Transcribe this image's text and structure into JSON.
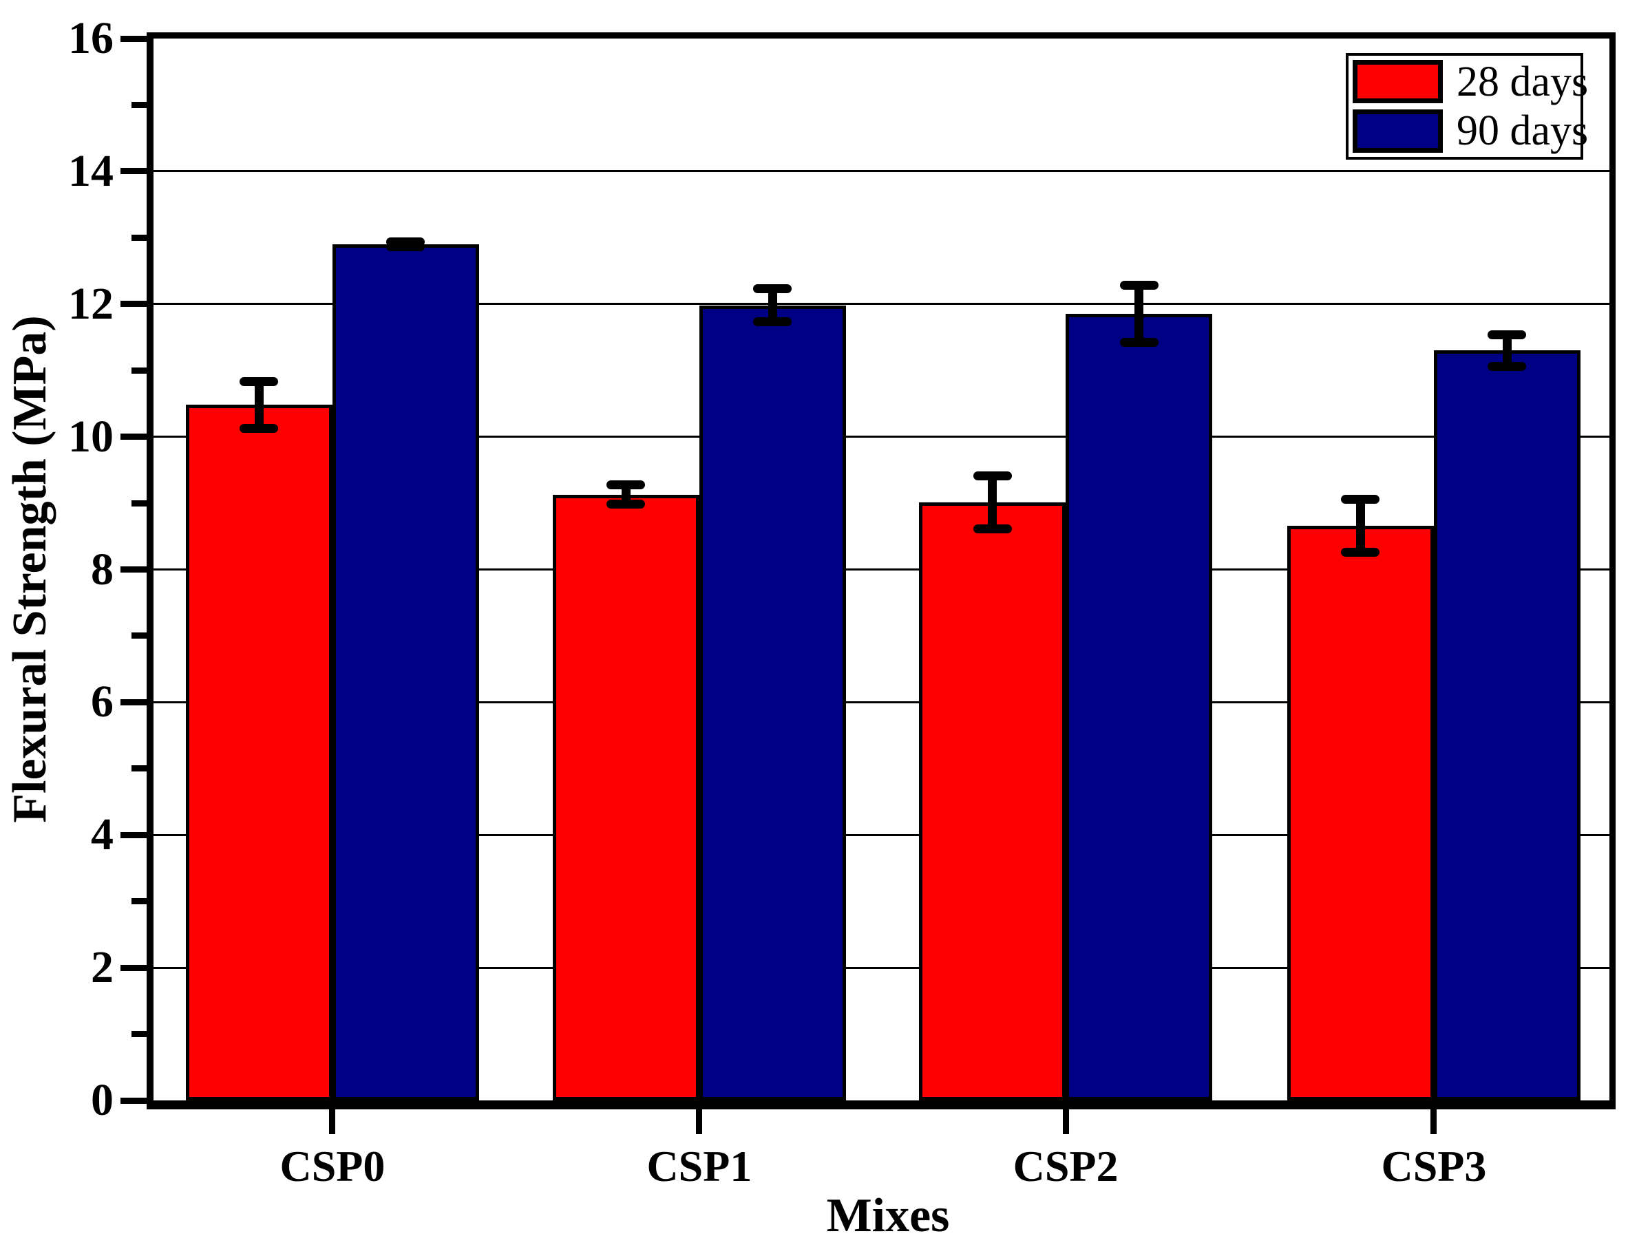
{
  "chart_data": {
    "type": "bar",
    "xlabel": "Mixes",
    "ylabel": "Flexural Strength (MPa)",
    "categories": [
      "CSP0",
      "CSP1",
      "CSP2",
      "CSP3"
    ],
    "series": [
      {
        "name": "28 days",
        "color": "#ff0000",
        "values": [
          10.48,
          9.13,
          9.01,
          8.66
        ],
        "errors": [
          0.35,
          0.15,
          0.4,
          0.4
        ]
      },
      {
        "name": "90 days",
        "color": "#000085",
        "values": [
          12.9,
          11.98,
          11.85,
          11.3
        ],
        "errors": [
          0.04,
          0.25,
          0.43,
          0.24
        ]
      }
    ],
    "ylim": [
      0,
      16
    ],
    "y_major_step": 2,
    "y_minor_step": 1,
    "y_tick_labels": [
      "0",
      "2",
      "4",
      "6",
      "8",
      "10",
      "12",
      "14",
      "16"
    ],
    "grid": "horizontal-major",
    "legend_position": "top-right",
    "bar_edge_color": "#000000",
    "error_bar_color": "#000000",
    "background_color": "#ffffff"
  },
  "legend": {
    "items": [
      {
        "label": "28 days",
        "color": "#ff0000"
      },
      {
        "label": "90 days",
        "color": "#000085"
      }
    ]
  }
}
